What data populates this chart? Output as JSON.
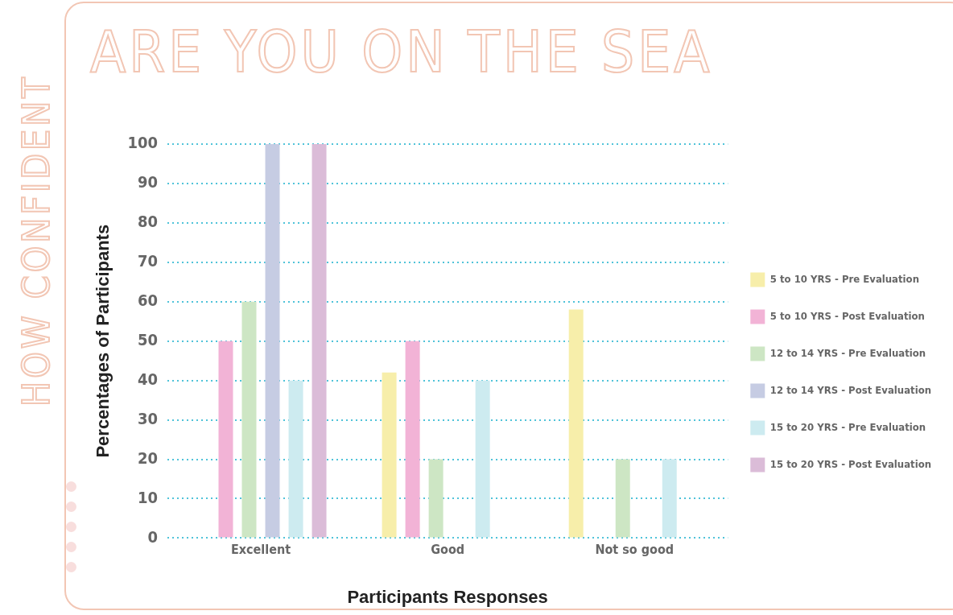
{
  "chart_data": {
    "type": "bar",
    "title": "HOW CONFIDENT",
    "subtitle": "ARE YOU ON THE SEA",
    "xlabel": "Participants Responses",
    "ylabel": "Percentages of Participants",
    "categories": [
      "Excellent",
      "Good",
      "Not so good"
    ],
    "series": [
      {
        "name": "5 to 10 YRS - Pre Evaluation",
        "color": "#f7eeaa",
        "values": [
          0,
          42,
          58
        ]
      },
      {
        "name": "5 to 10 YRS - Post Evaluation",
        "color": "#f2b3d6",
        "values": [
          50,
          50,
          0
        ]
      },
      {
        "name": "12 to 14 YRS - Pre Evaluation",
        "color": "#cde6c4",
        "values": [
          60,
          20,
          20
        ]
      },
      {
        "name": "12 to 14 YRS - Post Evaluation",
        "color": "#c6cce3",
        "values": [
          100,
          0,
          0
        ]
      },
      {
        "name": "15 to 20 YRS - Pre Evaluation",
        "color": "#cdebf0",
        "values": [
          40,
          40,
          20
        ]
      },
      {
        "name": "15 to 20 YRS - Post Evaluation",
        "color": "#dbbcd8",
        "values": [
          100,
          0,
          0
        ]
      }
    ],
    "ylim": [
      0,
      100
    ],
    "yticks": [
      0,
      10,
      20,
      30,
      40,
      50,
      60,
      70,
      80,
      90,
      100
    ],
    "grid": "y",
    "legend": "right"
  }
}
